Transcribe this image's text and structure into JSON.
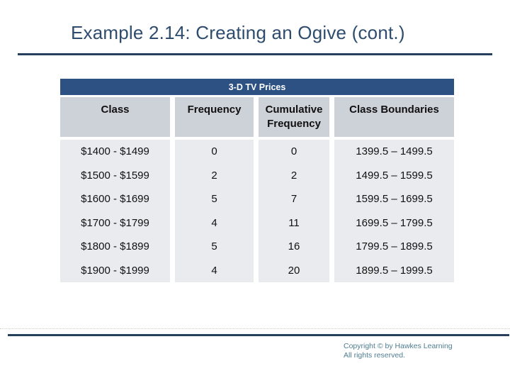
{
  "title": "Example 2.14: Creating an Ogive (cont.)",
  "table": {
    "title": "3-D TV Prices",
    "columns": [
      "Class",
      "Frequency",
      "Cumulative Frequency",
      "Class Boundaries"
    ],
    "rows": [
      {
        "class_label": "$1400 - $1499",
        "frequency": "0",
        "cumulative_frequency": "0",
        "class_boundaries": "1399.5 – 1499.5"
      },
      {
        "class_label": "$1500 - $1599",
        "frequency": "2",
        "cumulative_frequency": "2",
        "class_boundaries": "1499.5 – 1599.5"
      },
      {
        "class_label": "$1600 - $1699",
        "frequency": "5",
        "cumulative_frequency": "7",
        "class_boundaries": "1599.5 – 1699.5"
      },
      {
        "class_label": "$1700 - $1799",
        "frequency": "4",
        "cumulative_frequency": "11",
        "class_boundaries": "1699.5 – 1799.5"
      },
      {
        "class_label": "$1800 - $1899",
        "frequency": "5",
        "cumulative_frequency": "16",
        "class_boundaries": "1799.5 – 1899.5"
      },
      {
        "class_label": "$1900 - $1999",
        "frequency": "4",
        "cumulative_frequency": "20",
        "class_boundaries": "1899.5 – 1999.5"
      }
    ]
  },
  "footer": {
    "copyright_line1": "Copyright © by Hawkes Learning",
    "copyright_line2": "All rights reserved."
  },
  "colors": {
    "accent_navy": "#2d5183",
    "rule_navy": "#24405c",
    "title_text": "#2e4d6e",
    "header_bg": "#cdd1d8",
    "body_bg": "#e9ebee",
    "copyright_text": "#4e7d90"
  }
}
